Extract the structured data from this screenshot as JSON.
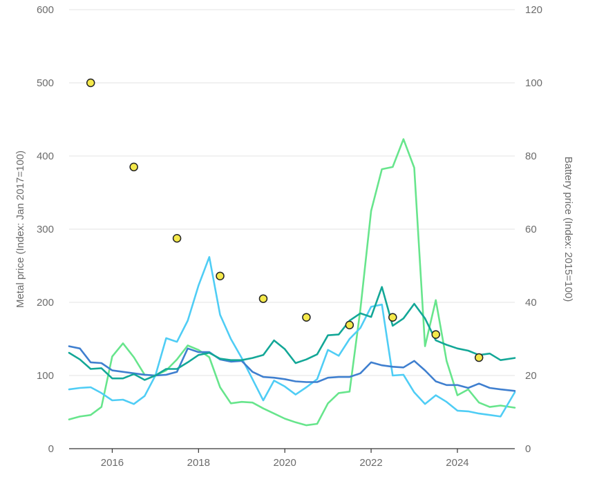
{
  "chart_data": {
    "type": "line",
    "title": "",
    "xlabel": "",
    "ylabel_left": "Metal price (Index: Jan 2017=100)",
    "ylabel_right": "Battery price (Index: 2015=100)",
    "xlim": [
      2015.0,
      2025.33
    ],
    "ylim_left": [
      0,
      600
    ],
    "ylim_right": [
      0,
      120
    ],
    "grid": "horizontal",
    "legend": "none",
    "x_ticks": [
      2016,
      2018,
      2020,
      2022,
      2024
    ],
    "x_tick_labels": [
      "2016",
      "2018",
      "2020",
      "2022",
      "2024"
    ],
    "y_left_ticks": [
      0,
      100,
      200,
      300,
      400,
      500,
      600
    ],
    "y_left_tick_labels": [
      "0",
      "100",
      "200",
      "300",
      "400",
      "500",
      "600"
    ],
    "y_right_ticks": [
      0,
      20,
      40,
      60,
      80,
      100,
      120
    ],
    "y_right_tick_labels": [
      "0",
      "20",
      "40",
      "60",
      "80",
      "100",
      "120"
    ],
    "series": [
      {
        "color": "#67e58c",
        "axis": "left",
        "x": [
          2015.0,
          2015.25,
          2015.5,
          2015.75,
          2016.0,
          2016.25,
          2016.5,
          2016.75,
          2017.0,
          2017.25,
          2017.5,
          2017.75,
          2018.0,
          2018.25,
          2018.5,
          2018.75,
          2019.0,
          2019.25,
          2019.5,
          2019.75,
          2020.0,
          2020.25,
          2020.5,
          2020.75,
          2021.0,
          2021.25,
          2021.5,
          2021.75,
          2022.0,
          2022.25,
          2022.5,
          2022.75,
          2023.0,
          2023.25,
          2023.5,
          2023.75,
          2024.0,
          2024.25,
          2024.5,
          2024.75,
          2025.0,
          2025.33
        ],
        "values": [
          40,
          44,
          46,
          57,
          126,
          144,
          125,
          101,
          100,
          107,
          122,
          141,
          135,
          125,
          84,
          62,
          64,
          63,
          55,
          48,
          41,
          36,
          32,
          34,
          62,
          76,
          78,
          190,
          325,
          382,
          385,
          423,
          384,
          140,
          203,
          120,
          73,
          81,
          63,
          57,
          59,
          56
        ]
      },
      {
        "color": "#4fcdf5",
        "axis": "left",
        "x": [
          2015.0,
          2015.25,
          2015.5,
          2015.75,
          2016.0,
          2016.25,
          2016.5,
          2016.75,
          2017.0,
          2017.25,
          2017.5,
          2017.75,
          2018.0,
          2018.25,
          2018.5,
          2018.75,
          2019.0,
          2019.25,
          2019.5,
          2019.75,
          2020.0,
          2020.25,
          2020.5,
          2020.75,
          2021.0,
          2021.25,
          2021.5,
          2021.75,
          2022.0,
          2022.25,
          2022.5,
          2022.75,
          2023.0,
          2023.25,
          2023.5,
          2023.75,
          2024.0,
          2024.25,
          2024.5,
          2024.75,
          2025.0,
          2025.33
        ],
        "values": [
          81,
          83,
          84,
          76,
          66,
          67,
          61,
          72,
          100,
          151,
          146,
          175,
          223,
          262,
          183,
          150,
          124,
          95,
          66,
          93,
          85,
          74,
          84,
          95,
          135,
          127,
          150,
          165,
          194,
          197,
          100,
          101,
          77,
          61,
          73,
          64,
          52,
          51,
          48,
          46,
          44,
          77
        ]
      },
      {
        "color": "#3f7fcf",
        "axis": "left",
        "x": [
          2015.0,
          2015.25,
          2015.5,
          2015.75,
          2016.0,
          2016.25,
          2016.5,
          2016.75,
          2017.0,
          2017.25,
          2017.5,
          2017.75,
          2018.0,
          2018.25,
          2018.5,
          2018.75,
          2019.0,
          2019.25,
          2019.5,
          2019.75,
          2020.0,
          2020.25,
          2020.5,
          2020.75,
          2021.0,
          2021.25,
          2021.5,
          2021.75,
          2022.0,
          2022.25,
          2022.5,
          2022.75,
          2023.0,
          2023.25,
          2023.5,
          2023.75,
          2024.0,
          2024.25,
          2024.5,
          2024.75,
          2025.0,
          2025.33
        ],
        "values": [
          140,
          137,
          118,
          117,
          107,
          105,
          103,
          101,
          100,
          101,
          105,
          137,
          132,
          132,
          122,
          119,
          120,
          105,
          98,
          97,
          95,
          92,
          91,
          91,
          97,
          98,
          98,
          103,
          118,
          114,
          112,
          111,
          120,
          107,
          92,
          87,
          87,
          83,
          89,
          83,
          81,
          79
        ]
      },
      {
        "color": "#13a797",
        "axis": "left",
        "x": [
          2015.0,
          2015.25,
          2015.5,
          2015.75,
          2016.0,
          2016.25,
          2016.5,
          2016.75,
          2017.0,
          2017.25,
          2017.5,
          2017.75,
          2018.0,
          2018.25,
          2018.5,
          2018.75,
          2019.0,
          2019.25,
          2019.5,
          2019.75,
          2020.0,
          2020.25,
          2020.5,
          2020.75,
          2021.0,
          2021.25,
          2021.5,
          2021.75,
          2022.0,
          2022.25,
          2022.5,
          2022.75,
          2023.0,
          2023.25,
          2023.5,
          2023.75,
          2024.0,
          2024.25,
          2024.5,
          2024.75,
          2025.0,
          2025.33
        ],
        "values": [
          131,
          122,
          109,
          110,
          96,
          96,
          102,
          94,
          100,
          109,
          109,
          118,
          128,
          131,
          123,
          121,
          121,
          124,
          128,
          148,
          136,
          117,
          122,
          129,
          155,
          156,
          175,
          185,
          180,
          221,
          168,
          178,
          198,
          178,
          148,
          142,
          137,
          134,
          128,
          130,
          121,
          124
        ]
      }
    ],
    "battery_points": {
      "color": "#f5e94b",
      "axis": "right",
      "x": [
        2015.5,
        2016.5,
        2017.5,
        2018.5,
        2019.5,
        2020.5,
        2021.5,
        2022.5,
        2023.5,
        2024.5
      ],
      "values": [
        100,
        77,
        57.5,
        47.2,
        41,
        35.9,
        33.8,
        35.9,
        31.2,
        24.9
      ]
    }
  }
}
